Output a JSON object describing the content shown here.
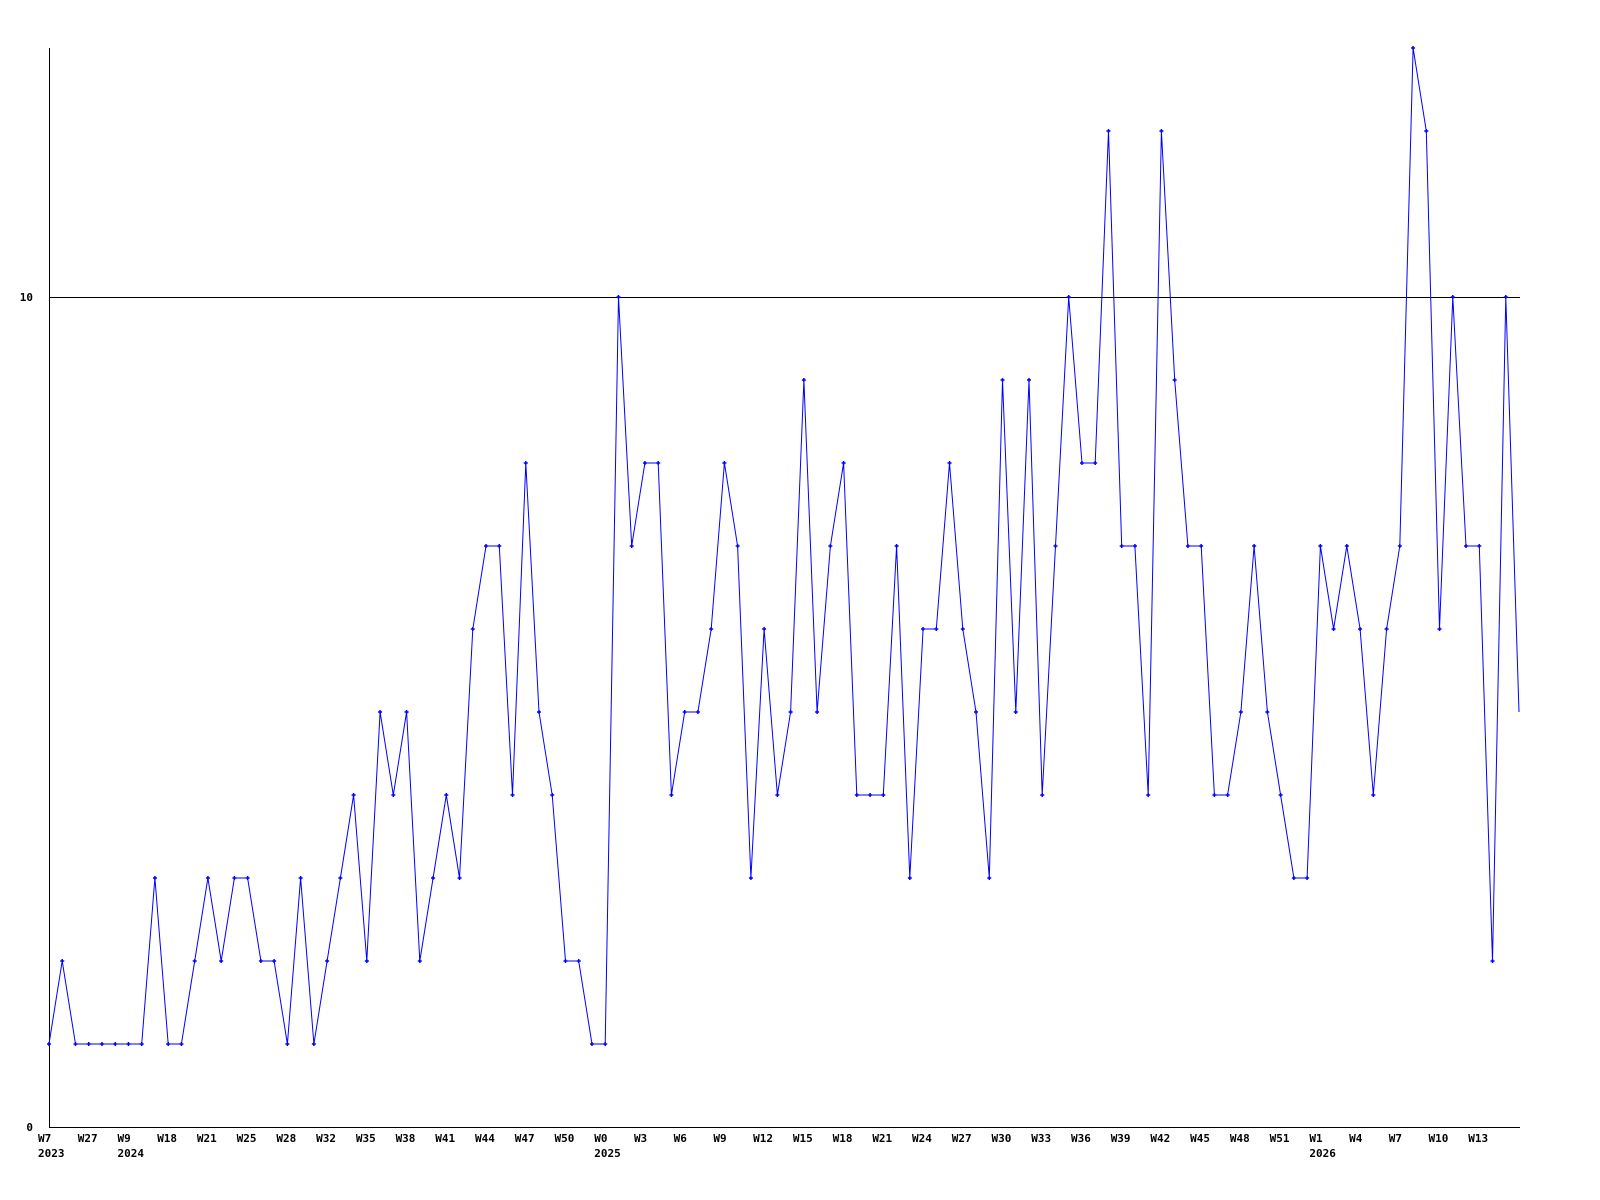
{
  "chart_data": {
    "type": "line",
    "title": "",
    "xlabel": "",
    "ylabel": "",
    "ylim": [
      0,
      13
    ],
    "y_ticks": [
      "0",
      "10"
    ],
    "grid": "horizontal line at 10",
    "legend": "none",
    "series_color": "#0000ff",
    "values": [
      1,
      2,
      1,
      1,
      1,
      1,
      1,
      1,
      3,
      1,
      1,
      2,
      3,
      2,
      3,
      3,
      2,
      2,
      1,
      3,
      1,
      2,
      3,
      4,
      2,
      5,
      4,
      5,
      2,
      3,
      4,
      3,
      6,
      7,
      7,
      4,
      8,
      5,
      4,
      2,
      2,
      1,
      1,
      10,
      7,
      8,
      8,
      4,
      5,
      5,
      6,
      8,
      7,
      3,
      6,
      4,
      5,
      9,
      5,
      7,
      8,
      4,
      4,
      4,
      7,
      3,
      6,
      6,
      8,
      6,
      5,
      3,
      9,
      5,
      9,
      4,
      7,
      10,
      8,
      8,
      12,
      7,
      7,
      4,
      12,
      9,
      7,
      7,
      4,
      4,
      5,
      7,
      5,
      4,
      3,
      3,
      7,
      6,
      7,
      6,
      4,
      6,
      7,
      13,
      12,
      6,
      10,
      7,
      7,
      2,
      10,
      5
    ],
    "x_tick_every": 3,
    "x_tick_labels": [
      {
        "week": "W7",
        "year": "2023"
      },
      {
        "week": "W27"
      },
      {
        "week": "W9",
        "year": "2024"
      },
      {
        "week": "W18"
      },
      {
        "week": "W21"
      },
      {
        "week": "W25"
      },
      {
        "week": "W28"
      },
      {
        "week": "W32"
      },
      {
        "week": "W35"
      },
      {
        "week": "W38"
      },
      {
        "week": "W41"
      },
      {
        "week": "W44"
      },
      {
        "week": "W47"
      },
      {
        "week": "W50"
      },
      {
        "week": "W0",
        "year": "2025"
      },
      {
        "week": "W3"
      },
      {
        "week": "W6"
      },
      {
        "week": "W9"
      },
      {
        "week": "W12"
      },
      {
        "week": "W15"
      },
      {
        "week": "W18"
      },
      {
        "week": "W21"
      },
      {
        "week": "W24"
      },
      {
        "week": "W27"
      },
      {
        "week": "W30"
      },
      {
        "week": "W33"
      },
      {
        "week": "W36"
      },
      {
        "week": "W39"
      },
      {
        "week": "W42"
      },
      {
        "week": "W45"
      },
      {
        "week": "W48"
      },
      {
        "week": "W51"
      },
      {
        "week": "W1",
        "year": "2026"
      },
      {
        "week": "W4"
      },
      {
        "week": "W7"
      },
      {
        "week": "W10"
      },
      {
        "week": "W13"
      }
    ]
  }
}
